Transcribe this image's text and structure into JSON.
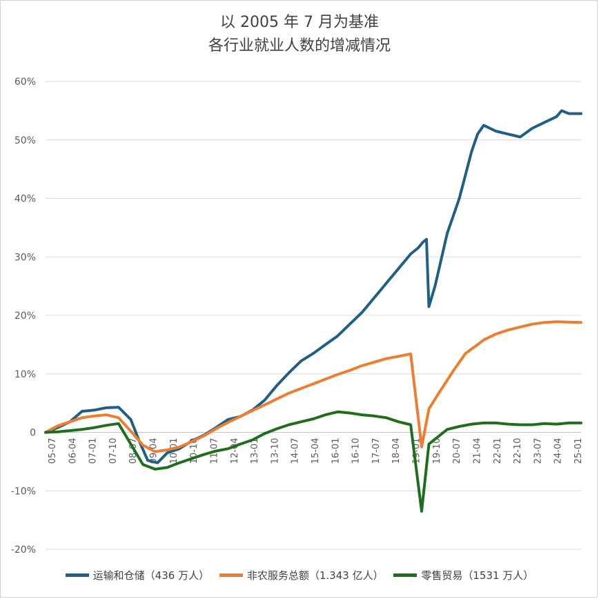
{
  "chart_data": {
    "type": "line",
    "title": [
      "以 2005 年 7 月为基准",
      "各行业就业人数的增减情况"
    ],
    "ylim": [
      -20,
      60
    ],
    "y_ticks": [
      60,
      50,
      40,
      30,
      20,
      10,
      0,
      -10,
      -20
    ],
    "y_tick_labels": [
      "60%",
      "50%",
      "40%",
      "30%",
      "20%",
      "10%",
      "0",
      "-10%",
      "-20%"
    ],
    "x_tick_labels": [
      "05-07",
      "06-04",
      "07-01",
      "07-10",
      "08-07",
      "09-04",
      "10-01",
      "10-10",
      "11-07",
      "12-04",
      "13-01",
      "13-10",
      "14-07",
      "15-04",
      "16-01",
      "16-10",
      "17-07",
      "18-04",
      "19-01",
      "19-10",
      "20-07",
      "21-04",
      "22-01",
      "22-10",
      "23-07",
      "24-04",
      "25-01"
    ],
    "grid": true,
    "legend_position": "bottom",
    "x_note": "x values are years from 2005-07 to 2025-06",
    "series": [
      {
        "name": "运输和仓储（436 万人）",
        "color": "#1f5f86",
        "points": [
          [
            0,
            0
          ],
          [
            0.5,
            0.8
          ],
          [
            1,
            1.8
          ],
          [
            1.5,
            3.6
          ],
          [
            2,
            3.8
          ],
          [
            2.5,
            4.2
          ],
          [
            3,
            4.3
          ],
          [
            3.5,
            2.2
          ],
          [
            3.85,
            -1.5
          ],
          [
            4.2,
            -4.8
          ],
          [
            4.6,
            -5.2
          ],
          [
            5,
            -3.5
          ],
          [
            5.5,
            -2.8
          ],
          [
            6,
            -1.5
          ],
          [
            6.5,
            -0.5
          ],
          [
            7,
            0.8
          ],
          [
            7.5,
            2.2
          ],
          [
            8,
            2.7
          ],
          [
            8.5,
            3.8
          ],
          [
            9,
            5.5
          ],
          [
            9.5,
            8
          ],
          [
            10,
            10.2
          ],
          [
            10.5,
            12.2
          ],
          [
            11,
            13.5
          ],
          [
            11.5,
            15
          ],
          [
            12,
            16.5
          ],
          [
            12.5,
            18.5
          ],
          [
            13,
            20.5
          ],
          [
            13.5,
            23
          ],
          [
            14,
            25.5
          ],
          [
            14.5,
            28
          ],
          [
            15,
            30.5
          ],
          [
            15.3,
            31.5
          ],
          [
            15.5,
            32.5
          ],
          [
            15.65,
            33
          ],
          [
            15.75,
            21.5
          ],
          [
            16,
            25
          ],
          [
            16.5,
            34
          ],
          [
            17,
            40
          ],
          [
            17.5,
            48
          ],
          [
            17.75,
            51
          ],
          [
            18,
            52.5
          ],
          [
            18.5,
            51.5
          ],
          [
            19,
            51
          ],
          [
            19.5,
            50.5
          ],
          [
            20,
            52
          ],
          [
            20.5,
            53
          ],
          [
            21,
            54
          ],
          [
            21.2,
            55
          ],
          [
            21.5,
            54.5
          ],
          [
            22,
            54.5
          ]
        ]
      },
      {
        "name": "非农服务总额（1.343 亿人）",
        "color": "#ed7d31",
        "points": [
          [
            0,
            0
          ],
          [
            0.5,
            1.1
          ],
          [
            1,
            1.8
          ],
          [
            1.5,
            2.5
          ],
          [
            2,
            2.8
          ],
          [
            2.5,
            3
          ],
          [
            3,
            2.5
          ],
          [
            3.5,
            0.2
          ],
          [
            4,
            -2.2
          ],
          [
            4.5,
            -3.3
          ],
          [
            5,
            -3
          ],
          [
            5.5,
            -2.5
          ],
          [
            6,
            -1.6
          ],
          [
            6.5,
            -0.6
          ],
          [
            7,
            0.6
          ],
          [
            7.5,
            1.7
          ],
          [
            8,
            2.7
          ],
          [
            8.5,
            3.7
          ],
          [
            9,
            4.7
          ],
          [
            9.5,
            5.7
          ],
          [
            10,
            6.7
          ],
          [
            10.5,
            7.5
          ],
          [
            11,
            8.3
          ],
          [
            11.5,
            9.1
          ],
          [
            12,
            9.9
          ],
          [
            12.5,
            10.6
          ],
          [
            13,
            11.4
          ],
          [
            13.5,
            12
          ],
          [
            14,
            12.6
          ],
          [
            14.5,
            13
          ],
          [
            15,
            13.4
          ],
          [
            15.45,
            -2.5
          ],
          [
            15.75,
            4
          ],
          [
            16.2,
            7
          ],
          [
            16.75,
            10.5
          ],
          [
            17.25,
            13.5
          ],
          [
            17.75,
            15
          ],
          [
            18,
            15.8
          ],
          [
            18.5,
            16.8
          ],
          [
            19,
            17.5
          ],
          [
            19.5,
            18
          ],
          [
            20,
            18.5
          ],
          [
            20.5,
            18.8
          ],
          [
            21,
            18.9
          ],
          [
            22,
            18.8
          ]
        ]
      },
      {
        "name": "零售贸易（1531 万人）",
        "color": "#1e6e1e",
        "points": [
          [
            0,
            0
          ],
          [
            0.5,
            0.1
          ],
          [
            1,
            0.3
          ],
          [
            1.5,
            0.5
          ],
          [
            2,
            0.8
          ],
          [
            2.5,
            1.2
          ],
          [
            3,
            1.5
          ],
          [
            3.5,
            -2
          ],
          [
            4,
            -5.5
          ],
          [
            4.5,
            -6.3
          ],
          [
            5,
            -6
          ],
          [
            5.5,
            -5.2
          ],
          [
            6,
            -4.5
          ],
          [
            6.5,
            -3.8
          ],
          [
            7,
            -3.2
          ],
          [
            7.5,
            -2.8
          ],
          [
            8,
            -2
          ],
          [
            8.5,
            -1.3
          ],
          [
            9,
            -0.2
          ],
          [
            9.5,
            0.6
          ],
          [
            10,
            1.3
          ],
          [
            10.5,
            1.8
          ],
          [
            11,
            2.3
          ],
          [
            11.5,
            3
          ],
          [
            12,
            3.5
          ],
          [
            12.5,
            3.3
          ],
          [
            13,
            3
          ],
          [
            13.5,
            2.8
          ],
          [
            14,
            2.5
          ],
          [
            14.5,
            1.8
          ],
          [
            15,
            1.3
          ],
          [
            15.45,
            -13.5
          ],
          [
            15.75,
            -2
          ],
          [
            16.5,
            0.5
          ],
          [
            17,
            1
          ],
          [
            17.5,
            1.4
          ],
          [
            18,
            1.6
          ],
          [
            18.5,
            1.6
          ],
          [
            19,
            1.4
          ],
          [
            19.5,
            1.3
          ],
          [
            20,
            1.3
          ],
          [
            20.5,
            1.5
          ],
          [
            21,
            1.4
          ],
          [
            21.5,
            1.6
          ],
          [
            22,
            1.6
          ]
        ]
      }
    ]
  }
}
